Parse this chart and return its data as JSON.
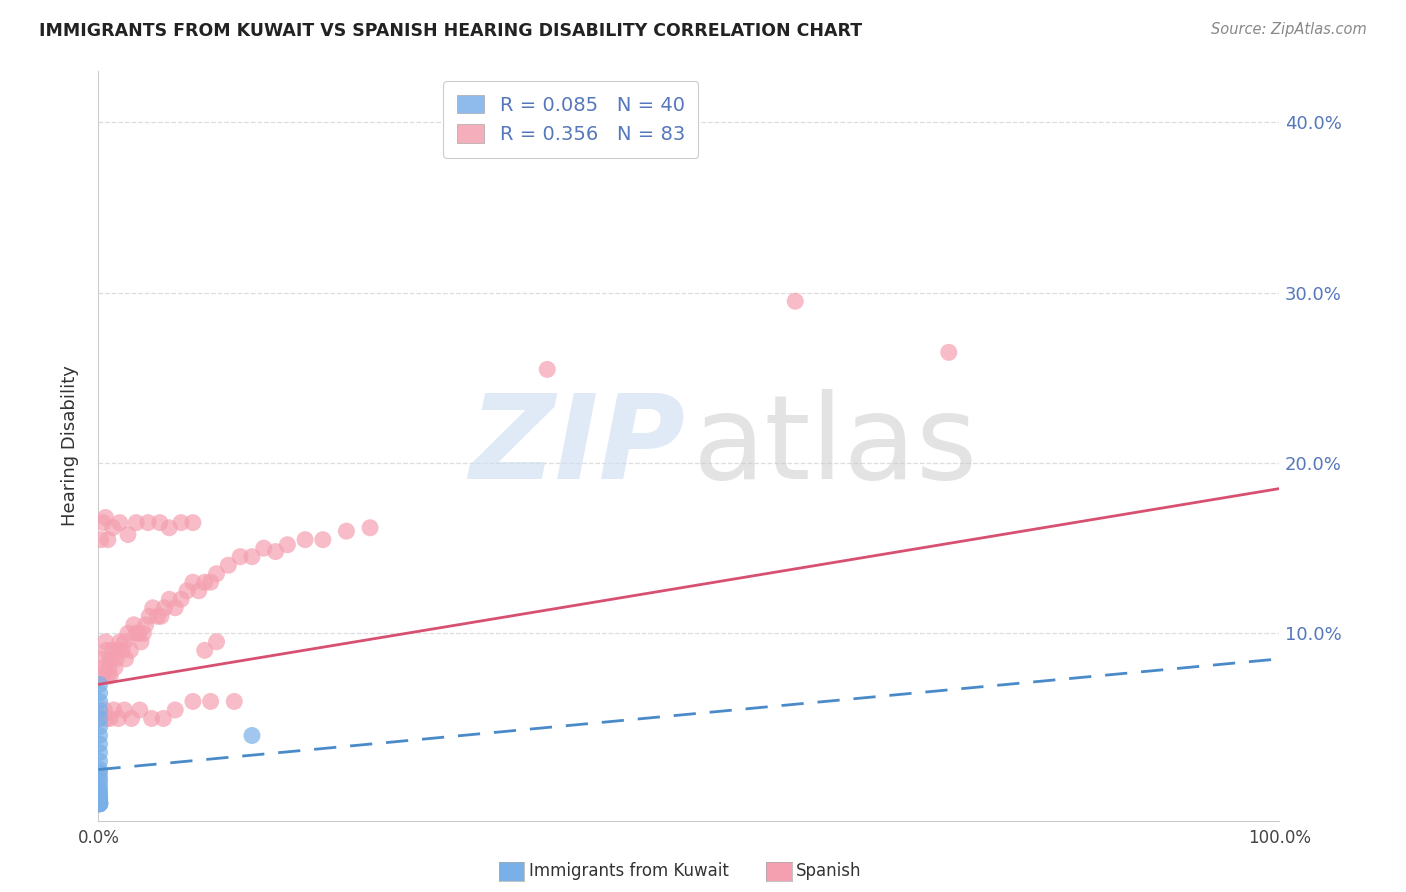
{
  "title": "IMMIGRANTS FROM KUWAIT VS SPANISH HEARING DISABILITY CORRELATION CHART",
  "source": "Source: ZipAtlas.com",
  "ylabel": "Hearing Disability",
  "xlim": [
    0.0,
    1.0
  ],
  "ylim": [
    -0.01,
    0.43
  ],
  "yticks": [
    0.0,
    0.1,
    0.2,
    0.3,
    0.4
  ],
  "ytick_labels": [
    "",
    "10.0%",
    "20.0%",
    "30.0%",
    "40.0%"
  ],
  "xticks": [
    0.0,
    0.2,
    0.4,
    0.6,
    0.8,
    1.0
  ],
  "xtick_labels": [
    "0.0%",
    "",
    "",
    "",
    "",
    "100.0%"
  ],
  "kuwait_R": 0.085,
  "kuwait_N": 40,
  "spanish_R": 0.356,
  "spanish_N": 83,
  "kuwait_color": "#7ab0e8",
  "spanish_color": "#f4a0b0",
  "kuwait_line_color": "#4a8ac8",
  "spanish_line_color": "#d85070",
  "background_color": "#ffffff",
  "grid_color": "#dddddd",
  "title_color": "#222222",
  "source_color": "#888888",
  "axis_tick_color": "#5577bb",
  "spanish_line_intercept": 0.07,
  "spanish_line_slope": 0.115,
  "kuwait_line_intercept": 0.02,
  "kuwait_line_slope": 0.065,
  "spanish_x": [
    0.002,
    0.003,
    0.004,
    0.005,
    0.006,
    0.007,
    0.008,
    0.009,
    0.01,
    0.01,
    0.012,
    0.014,
    0.015,
    0.016,
    0.018,
    0.02,
    0.022,
    0.023,
    0.025,
    0.027,
    0.03,
    0.032,
    0.034,
    0.036,
    0.038,
    0.04,
    0.043,
    0.046,
    0.05,
    0.053,
    0.056,
    0.06,
    0.065,
    0.07,
    0.075,
    0.08,
    0.085,
    0.09,
    0.095,
    0.1,
    0.11,
    0.12,
    0.13,
    0.14,
    0.15,
    0.16,
    0.175,
    0.19,
    0.21,
    0.23,
    0.003,
    0.005,
    0.007,
    0.01,
    0.013,
    0.017,
    0.022,
    0.028,
    0.035,
    0.045,
    0.055,
    0.065,
    0.08,
    0.095,
    0.115,
    0.002,
    0.004,
    0.006,
    0.008,
    0.012,
    0.018,
    0.025,
    0.032,
    0.042,
    0.052,
    0.06,
    0.07,
    0.08,
    0.09,
    0.1,
    0.59,
    0.72,
    0.38
  ],
  "spanish_y": [
    0.085,
    0.075,
    0.075,
    0.08,
    0.095,
    0.09,
    0.075,
    0.08,
    0.085,
    0.075,
    0.09,
    0.08,
    0.085,
    0.09,
    0.095,
    0.09,
    0.095,
    0.085,
    0.1,
    0.09,
    0.105,
    0.1,
    0.1,
    0.095,
    0.1,
    0.105,
    0.11,
    0.115,
    0.11,
    0.11,
    0.115,
    0.12,
    0.115,
    0.12,
    0.125,
    0.13,
    0.125,
    0.13,
    0.13,
    0.135,
    0.14,
    0.145,
    0.145,
    0.15,
    0.148,
    0.152,
    0.155,
    0.155,
    0.16,
    0.162,
    0.05,
    0.055,
    0.05,
    0.05,
    0.055,
    0.05,
    0.055,
    0.05,
    0.055,
    0.05,
    0.05,
    0.055,
    0.06,
    0.06,
    0.06,
    0.155,
    0.165,
    0.168,
    0.155,
    0.162,
    0.165,
    0.158,
    0.165,
    0.165,
    0.165,
    0.162,
    0.165,
    0.165,
    0.09,
    0.095,
    0.295,
    0.265,
    0.255
  ],
  "kuwait_x": [
    0.001,
    0.001,
    0.001,
    0.001,
    0.001,
    0.001,
    0.001,
    0.001,
    0.001,
    0.001,
    0.001,
    0.001,
    0.001,
    0.001,
    0.001,
    0.001,
    0.001,
    0.001,
    0.001,
    0.001,
    0.001,
    0.001,
    0.001,
    0.001,
    0.001,
    0.001,
    0.001,
    0.001,
    0.001,
    0.001,
    0.001,
    0.001,
    0.001,
    0.001,
    0.001,
    0.13,
    0.001,
    0.001,
    0.001,
    0.001
  ],
  "kuwait_y": [
    0.07,
    0.065,
    0.06,
    0.055,
    0.05,
    0.045,
    0.04,
    0.035,
    0.03,
    0.025,
    0.02,
    0.018,
    0.015,
    0.013,
    0.01,
    0.008,
    0.006,
    0.005,
    0.004,
    0.003,
    0.002,
    0.002,
    0.001,
    0.001,
    0.001,
    0.0,
    0.0,
    0.0,
    0.0,
    0.0,
    0.0,
    0.0,
    0.0,
    0.0,
    0.0,
    0.04,
    0.0,
    0.0,
    0.0,
    0.0
  ]
}
